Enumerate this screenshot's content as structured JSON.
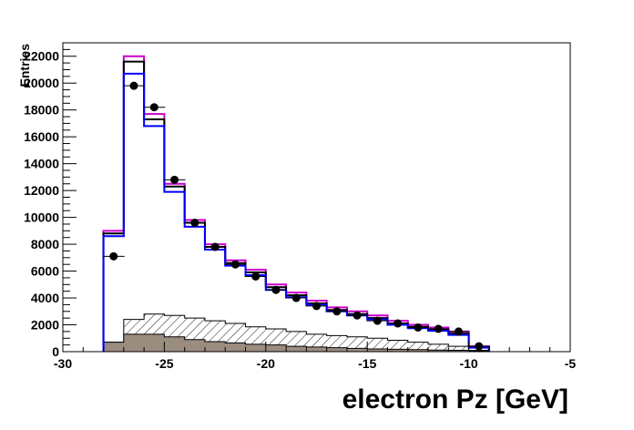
{
  "chart_data": {
    "type": "histogram",
    "xlabel": "electron Pz [GeV]",
    "ylabel": "Entries",
    "xlim": [
      -30,
      -5
    ],
    "ylim": [
      0,
      23000
    ],
    "x_ticks": [
      -30,
      -25,
      -20,
      -15,
      -10,
      -5
    ],
    "x_tick_labels": [
      "-30",
      "-25",
      "-20",
      "-15",
      "-10",
      "-5"
    ],
    "y_ticks": [
      0,
      2000,
      4000,
      6000,
      8000,
      10000,
      12000,
      14000,
      16000,
      18000,
      20000,
      22000
    ],
    "y_tick_labels": [
      "0",
      "2000",
      "4000",
      "6000",
      "8000",
      "10000",
      "12000",
      "14000",
      "16000",
      "18000",
      "20000",
      "22000"
    ],
    "bin_edges": [
      -28,
      -27,
      -26,
      -25,
      -24,
      -23,
      -22,
      -21,
      -20,
      -19,
      -18,
      -17,
      -16,
      -15,
      -14,
      -13,
      -12,
      -11,
      -10,
      -9
    ],
    "series": [
      {
        "color": "#cc00cc",
        "style": "step",
        "values": [
          9000,
          22000,
          17700,
          12500,
          9800,
          8000,
          6800,
          6100,
          5000,
          4400,
          3800,
          3300,
          3000,
          2700,
          2300,
          2000,
          1800,
          1500,
          400
        ]
      },
      {
        "color": "#000000",
        "style": "step",
        "values": [
          8800,
          21600,
          17300,
          12300,
          9600,
          7800,
          6600,
          5900,
          4800,
          4200,
          3600,
          3100,
          2800,
          2500,
          2100,
          1850,
          1650,
          1350,
          350
        ]
      },
      {
        "color": "#0000ff",
        "style": "step",
        "values": [
          8600,
          20700,
          16800,
          11900,
          9300,
          7600,
          6400,
          5700,
          4600,
          4050,
          3500,
          3000,
          2700,
          2400,
          2000,
          1750,
          1550,
          1250,
          300
        ]
      },
      {
        "color": "#000000",
        "style": "hatched",
        "values": [
          700,
          2400,
          2800,
          2700,
          2500,
          2300,
          2100,
          1850,
          1700,
          1500,
          1300,
          1200,
          1100,
          1000,
          850,
          700,
          550,
          400,
          100
        ]
      },
      {
        "color": "#9b8c80",
        "style": "filled",
        "values": [
          700,
          1300,
          1300,
          1100,
          900,
          750,
          650,
          550,
          500,
          400,
          350,
          300,
          250,
          200,
          180,
          150,
          120,
          100,
          30
        ]
      },
      {
        "color": "#000000",
        "style": "points",
        "x": [
          -27.5,
          -26.5,
          -25.5,
          -24.5,
          -23.5,
          -22.5,
          -21.5,
          -20.5,
          -19.5,
          -18.5,
          -17.5,
          -16.5,
          -15.5,
          -14.5,
          -13.5,
          -12.5,
          -11.5,
          -10.5,
          -9.5
        ],
        "values": [
          7100,
          19800,
          18200,
          12800,
          9600,
          7800,
          6500,
          5600,
          4600,
          4000,
          3400,
          3000,
          2700,
          2300,
          2100,
          1800,
          1700,
          1500,
          400
        ]
      }
    ]
  }
}
